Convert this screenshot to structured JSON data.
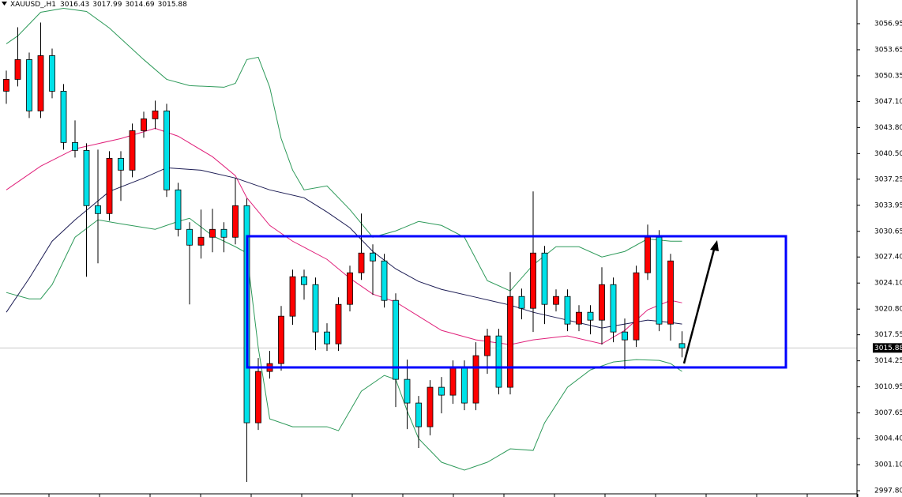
{
  "chart_data": {
    "type": "candlestick",
    "title": "XAUUSD_,H1",
    "ylim": [
      2997.4,
      3059.95
    ],
    "yticks": [
      3056.95,
      3053.65,
      3050.35,
      {
        "value": 3047.1,
        "label": "3047.10"
      },
      {
        "value": 3043.8,
        "label": "3043.80"
      },
      {
        "value": 3040.5,
        "label": "3040.50"
      },
      3037.25,
      3033.95,
      3030.65,
      {
        "value": 3027.4,
        "label": "3027.40"
      },
      {
        "value": 3024.1,
        "label": "3024.10"
      },
      {
        "value": 3020.8,
        "label": "3020.80"
      },
      3017.55,
      3014.25,
      3010.95,
      3007.65,
      {
        "value": 3004.4,
        "label": "3004.40"
      },
      {
        "value": 3001.1,
        "label": "3001.10"
      },
      {
        "value": 2997.8,
        "label": "2997.80"
      }
    ],
    "up_color": "#ff0000",
    "down_color": "#00e1e8",
    "open": [
      3048.4,
      3049.9,
      3052.4,
      3045.9,
      3052.9,
      3048.4,
      3041.9,
      3040.9,
      3033.9,
      3032.9,
      3039.9,
      3038.4,
      3043.4,
      3044.9,
      3045.9,
      3035.9,
      3030.9,
      3028.9,
      3029.9,
      3030.9,
      3029.9,
      3033.9,
      3006.4,
      3012.9,
      3013.9,
      3019.9,
      3024.9,
      3023.9,
      3017.9,
      3016.4,
      3021.4,
      3025.4,
      3027.9,
      3026.9,
      3021.9,
      3011.9,
      3008.9,
      3005.9,
      3010.9,
      3009.9,
      3013.4,
      3008.9,
      3014.9,
      3017.4,
      3010.9,
      3022.4,
      3020.9,
      3027.9,
      3021.4,
      3022.4,
      3018.9,
      3020.4,
      3019.4,
      3023.9,
      3017.9,
      3016.9,
      3025.4,
      3029.9,
      3018.9,
      3016.43
    ],
    "high": [
      3051.0,
      3056.5,
      3053.3,
      3057.1,
      3053.8,
      3049.3,
      3044.7,
      3041.8,
      3041.0,
      3040.8,
      3040.8,
      3044.3,
      3045.8,
      3047.2,
      3046.8,
      3036.8,
      3031.8,
      3033.4,
      3033.5,
      3031.8,
      3037.4,
      3034.8,
      3014.6,
      3015.5,
      3021.2,
      3025.8,
      3025.8,
      3024.8,
      3019.0,
      3022.3,
      3026.3,
      3032.9,
      3029.0,
      3027.8,
      3022.8,
      3014.4,
      3009.8,
      3011.8,
      3012.2,
      3014.3,
      3014.3,
      3016.6,
      3018.3,
      3018.3,
      3025.5,
      3023.4,
      3035.7,
      3028.8,
      3023.3,
      3023.3,
      3021.3,
      3021.3,
      3026.1,
      3024.8,
      3019.6,
      3026.3,
      3031.5,
      3030.8,
      3027.8,
      3017.99
    ],
    "low": [
      3046.8,
      3049.0,
      3045.0,
      3045.0,
      3047.5,
      3041.0,
      3040.0,
      3024.9,
      3026.6,
      3032.0,
      3034.5,
      3037.5,
      3042.5,
      3043.6,
      3035.0,
      3030.0,
      3021.4,
      3027.2,
      3028.0,
      3028.0,
      3029.0,
      2998.9,
      3005.5,
      3012.0,
      3013.0,
      3018.8,
      3022.0,
      3015.6,
      3015.5,
      3015.5,
      3020.5,
      3024.5,
      3022.6,
      3021.0,
      3008.4,
      3005.6,
      3003.2,
      3004.8,
      3007.6,
      3008.8,
      3008.0,
      3008.0,
      3012.6,
      3010.0,
      3010.0,
      3019.5,
      3017.9,
      3018.9,
      3020.5,
      3018.0,
      3018.0,
      3017.6,
      3016.3,
      3016.6,
      3013.2,
      3016.0,
      3024.5,
      3018.0,
      3016.8,
      3014.69
    ],
    "close": [
      3049.9,
      3052.4,
      3045.9,
      3052.9,
      3048.4,
      3041.9,
      3040.9,
      3033.9,
      3032.9,
      3039.9,
      3038.4,
      3043.4,
      3044.9,
      3045.9,
      3035.9,
      3030.9,
      3028.9,
      3029.9,
      3030.9,
      3029.9,
      3033.9,
      3006.4,
      3012.9,
      3013.9,
      3019.9,
      3024.9,
      3023.9,
      3017.9,
      3016.4,
      3021.4,
      3025.4,
      3027.9,
      3026.9,
      3021.9,
      3011.9,
      3008.9,
      3005.9,
      3010.9,
      3009.9,
      3013.4,
      3008.9,
      3014.9,
      3017.4,
      3010.9,
      3022.4,
      3020.9,
      3027.9,
      3021.4,
      3022.4,
      3018.9,
      3020.4,
      3019.4,
      3023.9,
      3017.9,
      3016.9,
      3025.4,
      3029.9,
      3018.9,
      3026.9,
      3015.88
    ],
    "lines": [
      {
        "color": "#2e9a5a",
        "x": [
          0,
          1,
          3,
          5,
          7,
          9,
          12,
          14,
          16,
          19,
          20,
          21,
          22,
          23,
          24,
          25,
          26,
          28,
          30,
          32,
          34,
          36,
          38,
          40,
          42,
          44,
          46,
          48,
          50,
          52,
          54,
          56,
          58,
          59
        ],
        "values": [
          3054.4,
          3055.4,
          3058.4,
          3058.9,
          3058.5,
          3056.4,
          3052.4,
          3049.9,
          3049.1,
          3048.9,
          3049.4,
          3052.4,
          3052.7,
          3048.9,
          3042.4,
          3038.4,
          3035.9,
          3036.4,
          3033.4,
          3029.9,
          3030.7,
          3031.9,
          3031.4,
          3029.9,
          3024.4,
          3023.1,
          3026.4,
          3028.7,
          3028.7,
          3027.4,
          3028.1,
          3029.7,
          3029.4,
          3029.4
        ]
      },
      {
        "color": "#2e9a5a",
        "x": [
          0,
          2,
          3,
          4,
          6,
          8,
          10,
          13,
          15,
          16,
          18,
          20,
          21,
          22,
          23,
          25,
          28,
          29,
          31,
          33,
          34,
          35,
          36,
          38,
          40,
          42,
          44,
          46,
          47,
          49,
          51,
          53,
          55,
          57,
          58,
          59
        ],
        "values": [
          3022.9,
          3022.1,
          3022.1,
          3023.9,
          3029.9,
          3032.1,
          3031.6,
          3030.9,
          3031.9,
          3032.3,
          3030.1,
          3028.7,
          3027.9,
          3015.9,
          3006.9,
          3005.9,
          3005.9,
          3005.4,
          3010.4,
          3012.4,
          3011.9,
          3007.9,
          3004.4,
          3001.4,
          3000.4,
          3001.4,
          3003.1,
          3002.9,
          3006.4,
          3010.9,
          3013.1,
          3014.1,
          3014.4,
          3014.3,
          3013.9,
          3012.9
        ]
      },
      {
        "color": "#e0207a",
        "x": [
          0,
          3,
          6,
          10,
          13,
          15,
          18,
          20,
          21,
          23,
          25,
          28,
          30,
          32,
          34,
          36,
          38,
          41,
          44,
          46,
          49,
          52,
          54,
          56,
          58,
          59
        ],
        "values": [
          3035.9,
          3038.9,
          3041.1,
          3042.4,
          3043.7,
          3042.7,
          3040.1,
          3037.7,
          3034.9,
          3031.4,
          3029.4,
          3027.1,
          3024.7,
          3022.7,
          3021.7,
          3019.9,
          3018.1,
          3016.9,
          3016.3,
          3016.9,
          3017.4,
          3016.4,
          3018.1,
          3020.7,
          3021.9,
          3021.6
        ]
      },
      {
        "color": "#1c1c54",
        "x": [
          0,
          2,
          4,
          6,
          9,
          12,
          14,
          17,
          20,
          23,
          26,
          28,
          30,
          32,
          34,
          36,
          38,
          41,
          44,
          46,
          49,
          52,
          54,
          56,
          58,
          59
        ],
        "values": [
          3020.4,
          3024.7,
          3029.4,
          3032.1,
          3035.7,
          3037.4,
          3038.7,
          3038.4,
          3037.4,
          3035.9,
          3034.9,
          3033.1,
          3031.1,
          3028.1,
          3025.9,
          3024.3,
          3023.3,
          3022.3,
          3021.3,
          3020.4,
          3019.4,
          3018.4,
          3018.9,
          3019.4,
          3019.1,
          3018.9
        ]
      }
    ]
  }
}
